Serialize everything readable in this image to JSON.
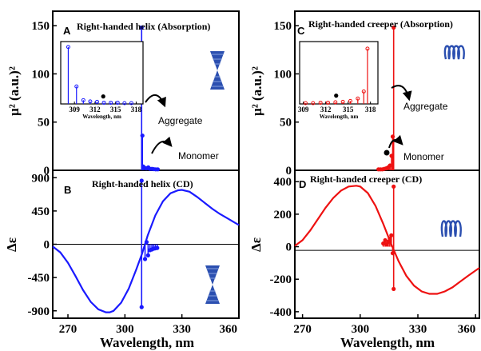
{
  "colors": {
    "blue": "#1a1aff",
    "red": "#ee1111",
    "frame": "#000000",
    "icon_blue": "#2b4fb0"
  },
  "icons": {
    "helix": "double-cone-helix-icon",
    "creeper": "coil-spring-icon"
  },
  "chart_data": [
    {
      "panel": "A",
      "type": "bar",
      "title": "Right-handed helix (Absorption)",
      "ylabel": "μ² (a.u.)²",
      "xlim": [
        262,
        360
      ],
      "ylim": [
        0,
        165
      ],
      "yticks": [
        0,
        50,
        100,
        150
      ],
      "color": "#1a1aff",
      "sticks": [
        {
          "x": 308.8,
          "y": 148
        },
        {
          "x": 309.2,
          "y": 36
        },
        {
          "x": 309.6,
          "y": 4
        },
        {
          "x": 310.5,
          "y": 2.5
        },
        {
          "x": 311.3,
          "y": 2
        },
        {
          "x": 312.3,
          "y": 3
        },
        {
          "x": 313.2,
          "y": 1.5
        },
        {
          "x": 314.2,
          "y": 1.5
        },
        {
          "x": 315.2,
          "y": 1.2
        },
        {
          "x": 316.2,
          "y": 1
        },
        {
          "x": 317.3,
          "y": 1
        }
      ],
      "annotations": [
        {
          "text": "Aggregate",
          "x": 325,
          "y": 73
        },
        {
          "text": "Monomer",
          "x": 325,
          "y": 22
        }
      ],
      "inset": {
        "xlim": [
          307,
          319
        ],
        "ylim": [
          0,
          150
        ],
        "xticks": [
          309,
          312,
          315,
          318
        ],
        "xlabel": "Wavelength, nm",
        "sticks": [
          {
            "x": 308.1,
            "y": 137
          },
          {
            "x": 309.3,
            "y": 42
          },
          {
            "x": 310.3,
            "y": 9
          },
          {
            "x": 311.3,
            "y": 6
          },
          {
            "x": 312.3,
            "y": 5
          },
          {
            "x": 313.3,
            "y": 3
          },
          {
            "x": 314.3,
            "y": 3
          },
          {
            "x": 315.3,
            "y": 3
          },
          {
            "x": 316.3,
            "y": 2
          },
          {
            "x": 317.3,
            "y": 2
          }
        ],
        "monomer_mark": {
          "x": 313.2,
          "y": 18
        }
      }
    },
    {
      "panel": "B",
      "type": "line",
      "title": "Right-handed helix (CD)",
      "ylabel": "Δε",
      "xlabel": "Wavelength, nm",
      "xlim": [
        262,
        360
      ],
      "ylim": [
        -1000,
        1000
      ],
      "yticks": [
        -900,
        -450,
        0,
        450,
        900
      ],
      "xticks": [
        270,
        300,
        330,
        360
      ],
      "color": "#1a1aff",
      "curve": {
        "x": [
          262,
          266,
          270,
          274,
          278,
          282,
          286,
          290,
          292,
          294,
          298,
          302,
          306,
          309,
          312,
          316,
          320,
          324,
          328,
          330,
          334,
          338,
          342,
          346,
          350,
          354,
          358,
          360
        ],
        "y": [
          -30,
          -110,
          -250,
          -430,
          -620,
          -780,
          -880,
          -920,
          -920,
          -900,
          -790,
          -600,
          -340,
          -130,
          120,
          390,
          580,
          690,
          730,
          735,
          710,
          640,
          560,
          480,
          410,
          350,
          290,
          260
        ]
      },
      "sticks": [
        {
          "x": 308.8,
          "y": 860
        },
        {
          "x": 308.8,
          "y": -850
        },
        {
          "x": 310.6,
          "y": -200
        },
        {
          "x": 311.4,
          "y": 30
        },
        {
          "x": 312.2,
          "y": -150
        },
        {
          "x": 313.2,
          "y": -80
        },
        {
          "x": 314.2,
          "y": -70
        },
        {
          "x": 315.1,
          "y": -60
        },
        {
          "x": 316.0,
          "y": -55
        },
        {
          "x": 317.0,
          "y": -50
        }
      ]
    },
    {
      "panel": "C",
      "type": "bar",
      "title": "Right-handed creeper (Absorption)",
      "ylabel": "μ² (a.u.)²",
      "xlim": [
        266,
        362
      ],
      "ylim": [
        0,
        165
      ],
      "yticks": [
        0,
        50,
        100,
        150
      ],
      "color": "#ee1111",
      "sticks": [
        {
          "x": 309.5,
          "y": 1
        },
        {
          "x": 310.5,
          "y": 1
        },
        {
          "x": 311.5,
          "y": 1
        },
        {
          "x": 312.5,
          "y": 1.5
        },
        {
          "x": 313.5,
          "y": 2
        },
        {
          "x": 314.5,
          "y": 3
        },
        {
          "x": 315.5,
          "y": 5
        },
        {
          "x": 316.3,
          "y": 15
        },
        {
          "x": 316.9,
          "y": 35
        },
        {
          "x": 317.4,
          "y": 148
        }
      ],
      "annotations": [
        {
          "text": "Aggregate",
          "x": 322,
          "y": 82
        },
        {
          "text": "Monomer",
          "x": 322,
          "y": 23
        }
      ],
      "inset": {
        "xlim": [
          308.5,
          319
        ],
        "ylim": [
          0,
          150
        ],
        "xticks": [
          309,
          312,
          315,
          318
        ],
        "xlabel": "Wavelength, nm",
        "sticks": [
          {
            "x": 309.3,
            "y": 2
          },
          {
            "x": 310.3,
            "y": 2
          },
          {
            "x": 311.3,
            "y": 3
          },
          {
            "x": 312.3,
            "y": 3
          },
          {
            "x": 313.3,
            "y": 4
          },
          {
            "x": 314.3,
            "y": 5
          },
          {
            "x": 315.3,
            "y": 7
          },
          {
            "x": 316.3,
            "y": 13
          },
          {
            "x": 317.1,
            "y": 30
          },
          {
            "x": 317.6,
            "y": 133
          }
        ],
        "monomer_mark": {
          "x": 313.4,
          "y": 20
        }
      }
    },
    {
      "panel": "D",
      "type": "line",
      "title": "Right-handed creeper (CD)",
      "ylabel": "Δε",
      "xlabel": "Wavelength, nm",
      "xlim": [
        266,
        362
      ],
      "ylim": [
        -440,
        470
      ],
      "yticks": [
        -400,
        -200,
        0,
        200,
        400
      ],
      "xticks": [
        270,
        300,
        330,
        360
      ],
      "color": "#ee1111",
      "curve": {
        "x": [
          266,
          270,
          274,
          278,
          282,
          286,
          290,
          294,
          298,
          300,
          304,
          308,
          312,
          316,
          320,
          324,
          328,
          332,
          336,
          340,
          344,
          348,
          352,
          356,
          362
        ],
        "y": [
          5,
          40,
          100,
          170,
          240,
          300,
          345,
          370,
          375,
          370,
          330,
          250,
          140,
          20,
          -90,
          -180,
          -240,
          -275,
          -290,
          -290,
          -275,
          -250,
          -215,
          -180,
          -130
        ]
      },
      "sticks": [
        {
          "x": 317.4,
          "y": 370
        },
        {
          "x": 317.4,
          "y": -260
        },
        {
          "x": 312.0,
          "y": 20
        },
        {
          "x": 313.0,
          "y": 40
        },
        {
          "x": 313.8,
          "y": 15
        },
        {
          "x": 314.6,
          "y": 30
        },
        {
          "x": 315.4,
          "y": 50
        },
        {
          "x": 316.2,
          "y": 70
        },
        {
          "x": 316.9,
          "y": -40
        }
      ]
    }
  ]
}
